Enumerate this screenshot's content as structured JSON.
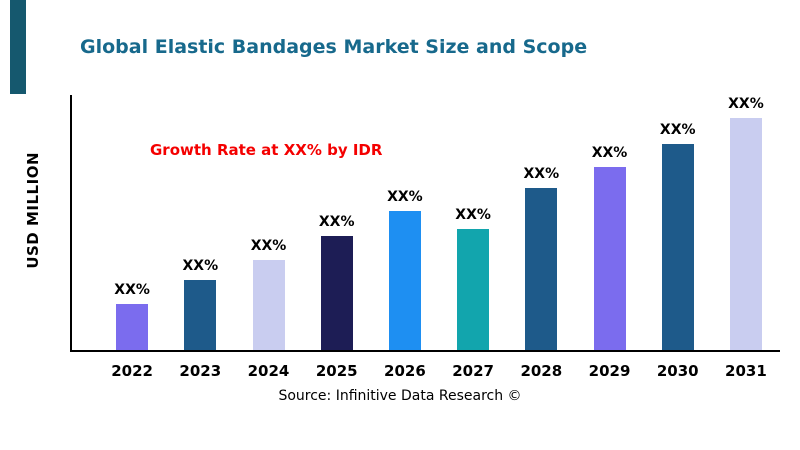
{
  "chart_data": {
    "type": "bar",
    "title": "Global Elastic Bandages Market Size and Scope",
    "title_color": "#17698c",
    "ylabel": "USD MILLION",
    "xlabel": "",
    "categories": [
      "2022",
      "2023",
      "2024",
      "2025",
      "2026",
      "2027",
      "2028",
      "2029",
      "2030",
      "2031"
    ],
    "values": [
      20,
      30,
      39,
      49,
      60,
      52,
      70,
      79,
      89,
      100
    ],
    "bar_labels": [
      "XX%",
      "XX%",
      "XX%",
      "XX%",
      "XX%",
      "XX%",
      "XX%",
      "XX%",
      "XX%",
      "XX%"
    ],
    "bar_colors": [
      "#7b6cee",
      "#1e5a8a",
      "#c9cdf0",
      "#1d1d55",
      "#1e8ff2",
      "#12a5ad",
      "#1e5a8a",
      "#7b6cee",
      "#1e5a8a",
      "#c9cdf0"
    ],
    "ylim": [
      0,
      110
    ],
    "grid": false,
    "legend": false,
    "annotation": {
      "text": "Growth Rate at XX% by IDR",
      "color": "#f40000"
    },
    "source": "Source: Infinitive Data Research ©",
    "accent_color": "#15586e"
  }
}
